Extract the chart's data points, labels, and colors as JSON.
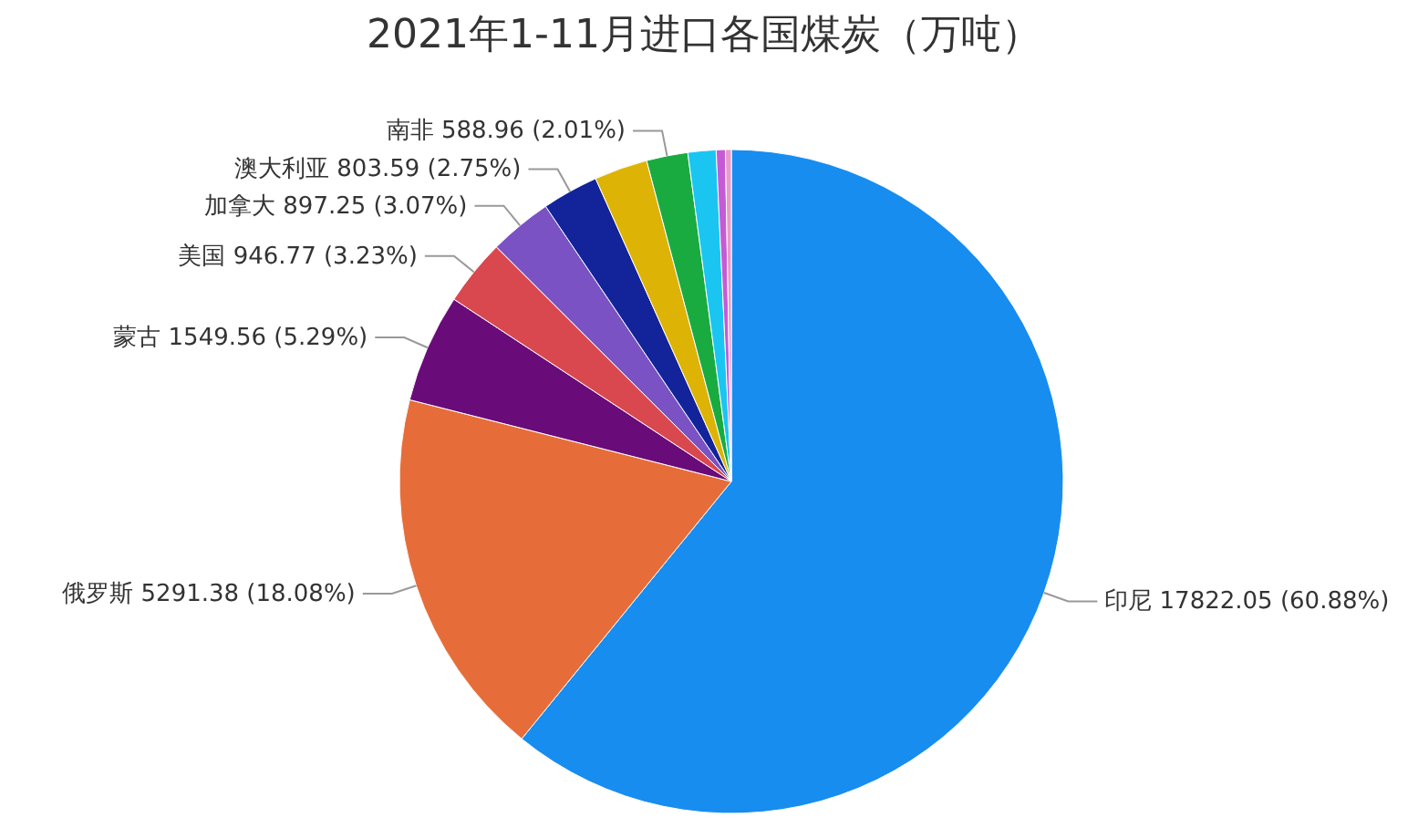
{
  "chart_data": {
    "type": "pie",
    "title": "2021年1-11月进口各国煤炭（万吨）",
    "categories": [
      "印尼",
      "俄罗斯",
      "蒙古",
      "美国",
      "加拿大",
      "澳大利亚",
      null,
      "南非",
      null,
      null,
      null
    ],
    "values": [
      17822.05,
      5291.38,
      1549.56,
      946.77,
      897.25,
      803.59,
      760,
      588.96,
      400,
      130,
      84
    ],
    "value_labels": [
      "17822.05 (60.88%)",
      "5291.38 (18.08%)",
      "1549.56 (5.29%)",
      "946.77 (3.23%)",
      "897.25 (3.07%)",
      "803.59 (2.75%)",
      null,
      "588.96 (2.01%)",
      null,
      null,
      null
    ],
    "colors": [
      "#188df0",
      "#e66d3a",
      "#6a0b7a",
      "#d9484f",
      "#7a52c4",
      "#13249a",
      "#ddb306",
      "#1aab40",
      "#1ac5f2",
      "#c45bd4",
      "#e89bc8"
    ],
    "legend": false
  }
}
